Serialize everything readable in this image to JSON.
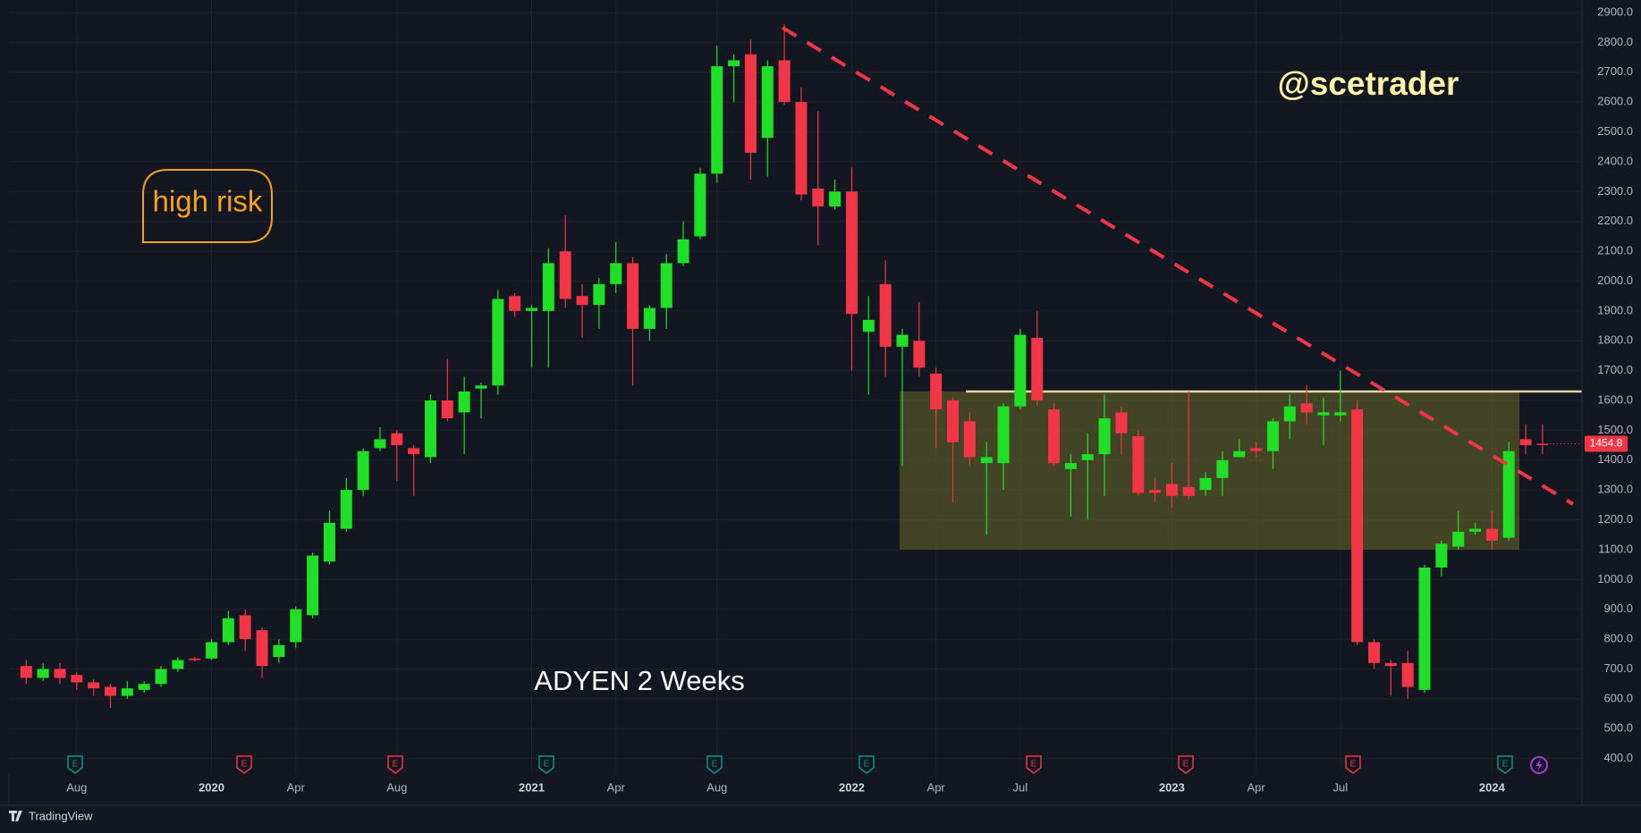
{
  "chart_data": {
    "type": "candlestick",
    "title": "ADYEN 2 Weeks",
    "annotations": [
      "high risk",
      "@scetrader"
    ],
    "brand": "TradingView",
    "earnings": [
      {
        "label": "E",
        "color": "#089981"
      },
      {
        "label": "E",
        "color": "#f23645"
      },
      {
        "label": "E",
        "color": "#f23645"
      },
      {
        "label": "E",
        "color": "#089981"
      },
      {
        "label": "E",
        "color": "#089981"
      },
      {
        "label": "E",
        "color": "#089981"
      },
      {
        "label": "E",
        "color": "#f23645"
      },
      {
        "label": "E",
        "color": "#f23645"
      },
      {
        "label": "E",
        "color": "#f23645"
      },
      {
        "label": "E",
        "color": "#089981"
      }
    ],
    "up_color": "#1fe026",
    "down_color": "#f23645",
    "grid": true,
    "categories": [
      null,
      null,
      null,
      "Aug",
      null,
      null,
      null,
      null,
      null,
      null,
      null,
      "2020",
      null,
      null,
      null,
      null,
      "Apr",
      null,
      null,
      null,
      null,
      null,
      "Aug",
      null,
      null,
      null,
      null,
      null,
      null,
      null,
      "2021",
      null,
      null,
      null,
      null,
      "Apr",
      null,
      null,
      null,
      null,
      null,
      "Aug",
      null,
      null,
      null,
      null,
      null,
      null,
      null,
      "2022",
      null,
      null,
      null,
      null,
      "Apr",
      null,
      null,
      null,
      null,
      "Jul",
      null,
      null,
      null,
      null,
      null,
      null,
      null,
      null,
      "2023",
      null,
      null,
      null,
      null,
      "Apr",
      null,
      null,
      null,
      null,
      "Jul",
      null,
      null,
      null,
      null,
      null,
      null,
      null,
      null,
      "2024",
      null,
      null,
      null
    ],
    "open": [
      710,
      670,
      700,
      680,
      655,
      640,
      610,
      630,
      650,
      700,
      735,
      735,
      790,
      880,
      830,
      740,
      790,
      880,
      1060,
      1170,
      1300,
      1440,
      1490,
      1440,
      1410,
      1600,
      1560,
      1640,
      1650,
      1950,
      1900,
      1900,
      2100,
      1950,
      1920,
      1990,
      2060,
      1840,
      1910,
      2060,
      2150,
      2360,
      2720,
      2760,
      2480,
      2740,
      2600,
      2310,
      2250,
      2300,
      1830,
      1990,
      1780,
      1800,
      1690,
      1600,
      1530,
      1390,
      1390,
      1580,
      1810,
      1570,
      1370,
      1400,
      1420,
      1560,
      1480,
      1300,
      1320,
      1310,
      1300,
      1340,
      1410,
      1440,
      1430,
      1530,
      1590,
      1550,
      1550,
      1570,
      790,
      720,
      720,
      630,
      1040,
      1110,
      1160,
      1170,
      1140,
      1470,
      1455
    ],
    "high": [
      730,
      720,
      720,
      690,
      665,
      650,
      660,
      660,
      710,
      740,
      740,
      800,
      895,
      900,
      840,
      800,
      910,
      1090,
      1230,
      1340,
      1440,
      1510,
      1500,
      1450,
      1620,
      1740,
      1680,
      1660,
      1970,
      1960,
      1920,
      2110,
      2220,
      1990,
      2010,
      2130,
      2080,
      1920,
      2090,
      2200,
      2380,
      2790,
      2760,
      2810,
      2740,
      2860,
      2650,
      2570,
      2340,
      2380,
      1950,
      2070,
      1840,
      1930,
      1710,
      1610,
      1560,
      1460,
      1590,
      1840,
      1900,
      1590,
      1420,
      1490,
      1620,
      1580,
      1500,
      1340,
      1390,
      1630,
      1360,
      1430,
      1470,
      1460,
      1540,
      1620,
      1650,
      1610,
      1700,
      1600,
      800,
      730,
      760,
      1050,
      1130,
      1230,
      1190,
      1230,
      1460,
      1520,
      1520
    ],
    "low": [
      650,
      660,
      650,
      630,
      610,
      570,
      600,
      620,
      640,
      690,
      725,
      730,
      780,
      760,
      670,
      720,
      770,
      870,
      1050,
      1160,
      1280,
      1430,
      1330,
      1280,
      1390,
      1530,
      1420,
      1540,
      1620,
      1880,
      1710,
      1710,
      1910,
      1810,
      1840,
      1960,
      1650,
      1800,
      1840,
      2050,
      2140,
      2330,
      2600,
      2340,
      2350,
      2590,
      2270,
      2120,
      2240,
      1700,
      1620,
      1680,
      1380,
      1680,
      1440,
      1260,
      1380,
      1150,
      1300,
      1570,
      1580,
      1380,
      1210,
      1200,
      1280,
      1420,
      1280,
      1260,
      1240,
      1270,
      1280,
      1280,
      1410,
      1410,
      1370,
      1470,
      1520,
      1450,
      1530,
      780,
      700,
      610,
      600,
      620,
      1010,
      1100,
      1150,
      1100,
      1130,
      1420,
      1420
    ],
    "close": [
      670,
      700,
      670,
      655,
      635,
      610,
      635,
      650,
      700,
      730,
      730,
      790,
      870,
      800,
      710,
      780,
      900,
      1080,
      1190,
      1300,
      1430,
      1470,
      1450,
      1420,
      1600,
      1540,
      1630,
      1650,
      1940,
      1900,
      1910,
      2060,
      1940,
      1920,
      1990,
      2060,
      1840,
      1910,
      2060,
      2140,
      2360,
      2720,
      2740,
      2430,
      2720,
      2600,
      2290,
      2250,
      2300,
      1890,
      1870,
      1780,
      1820,
      1710,
      1570,
      1460,
      1410,
      1410,
      1580,
      1820,
      1600,
      1390,
      1390,
      1420,
      1540,
      1490,
      1290,
      1290,
      1280,
      1280,
      1340,
      1400,
      1430,
      1430,
      1530,
      1580,
      1560,
      1560,
      1560,
      790,
      720,
      710,
      640,
      1040,
      1120,
      1160,
      1170,
      1130,
      1430,
      1450,
      1454.8
    ],
    "ylim": [
      348,
      2942
    ],
    "yticks": [
      {
        "value": 400,
        "label": "400.0"
      },
      {
        "value": 500,
        "label": "500.0"
      },
      {
        "value": 600,
        "label": "600.0"
      },
      {
        "value": 700,
        "label": "700.0"
      },
      {
        "value": 800,
        "label": "800.0"
      },
      {
        "value": 900,
        "label": "900.0"
      },
      {
        "value": 1000,
        "label": "1000.0"
      },
      {
        "value": 1100,
        "label": "1100.0"
      },
      {
        "value": 1200,
        "label": "1200.0"
      },
      {
        "value": 1300,
        "label": "1300.0"
      },
      {
        "value": 1400,
        "label": "1400.0"
      },
      {
        "value": 1500,
        "label": "1500.0"
      },
      {
        "value": 1600,
        "label": "1600.0"
      },
      {
        "value": 1700,
        "label": "1700.0"
      },
      {
        "value": 1800,
        "label": "1800.0"
      },
      {
        "value": 1900,
        "label": "1900.0"
      },
      {
        "value": 2000,
        "label": "2000.0"
      },
      {
        "value": 2100,
        "label": "2100.0"
      },
      {
        "value": 2200,
        "label": "2200.0"
      },
      {
        "value": 2300,
        "label": "2300.0"
      },
      {
        "value": 2400,
        "label": "2400.0"
      },
      {
        "value": 2500,
        "label": "2500.0"
      },
      {
        "value": 2600,
        "label": "2600.0"
      },
      {
        "value": 2700,
        "label": "2700.0"
      },
      {
        "value": 2800,
        "label": "2800.0"
      },
      {
        "value": 2900,
        "label": "2900.0"
      }
    ]
  }
}
